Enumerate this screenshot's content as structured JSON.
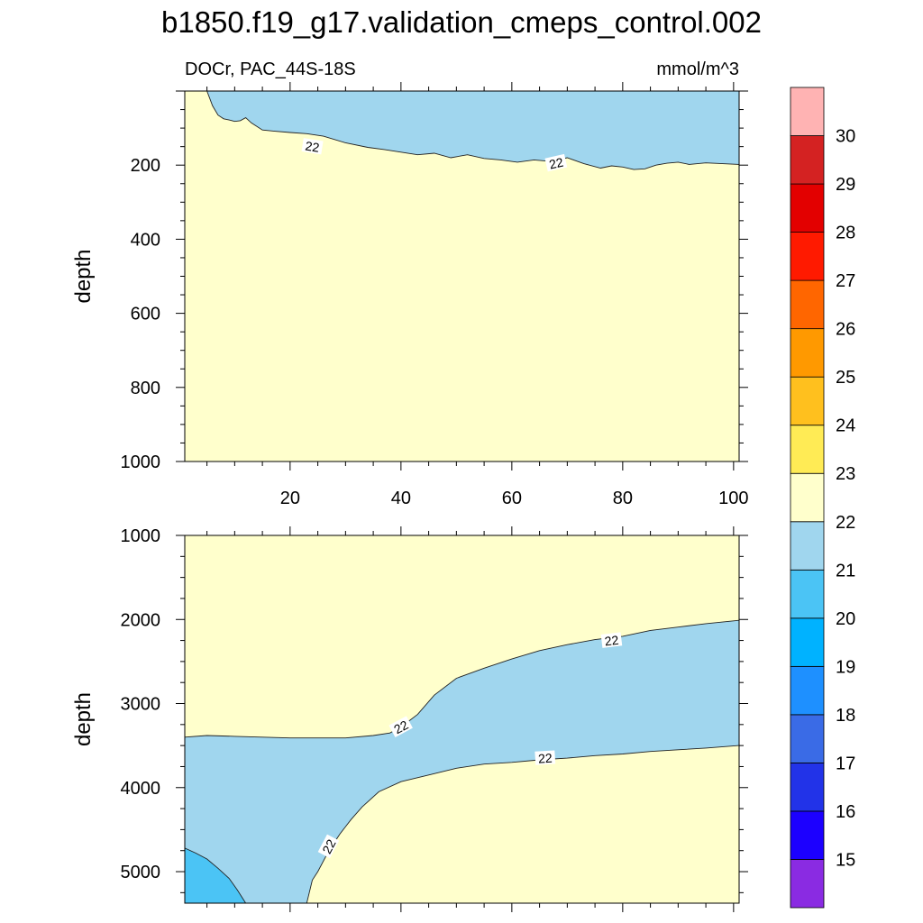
{
  "figure": {
    "title": "b1850.f19_g17.validation_cmeps_control.002",
    "left_subtitle": "DOCr, PAC_44S-18S",
    "right_subtitle": "mmol/m^3"
  },
  "colorbar": {
    "levels": [
      15,
      16,
      17,
      18,
      19,
      20,
      21,
      22,
      23,
      24,
      25,
      26,
      27,
      28,
      29,
      30
    ],
    "colors": [
      "#8a2be2",
      "#1c00ff",
      "#2233e8",
      "#3a6be6",
      "#1e90ff",
      "#00b2ff",
      "#4bc4f5",
      "#a0d6ee",
      "#ffffcc",
      "#ffeb55",
      "#ffc01e",
      "#ff9900",
      "#ff6600",
      "#ff1a00",
      "#e30000",
      "#d42222",
      "#ffb3b3"
    ]
  },
  "chart_data": [
    {
      "type": "contour",
      "panel": "upper",
      "xlabel": "",
      "ylabel": "depth",
      "xlim": [
        1,
        101
      ],
      "ylim": [
        1000,
        0
      ],
      "xticks": [
        20,
        40,
        60,
        80,
        100
      ],
      "yticks": [
        200,
        400,
        600,
        800,
        1000
      ],
      "background_band": "22-23",
      "contour_22": {
        "label": "22",
        "label_positions": [
          [
            24,
            150
          ],
          [
            68,
            195
          ]
        ],
        "x": [
          5,
          6,
          7,
          8,
          9,
          10,
          11,
          12,
          13,
          15,
          17,
          20,
          23,
          26,
          30,
          34,
          37,
          40,
          43,
          46,
          49,
          52,
          55,
          58,
          61,
          64,
          67,
          70,
          73,
          76,
          78,
          80,
          82,
          84,
          86,
          88,
          90,
          92,
          95,
          98,
          101
        ],
        "depth": [
          0,
          40,
          65,
          75,
          78,
          82,
          80,
          72,
          86,
          105,
          108,
          112,
          115,
          122,
          140,
          152,
          158,
          165,
          172,
          168,
          180,
          172,
          182,
          186,
          192,
          186,
          190,
          180,
          196,
          208,
          202,
          205,
          212,
          210,
          200,
          195,
          192,
          198,
          194,
          196,
          198
        ],
        "above": "21-22",
        "below": "22-23"
      }
    },
    {
      "type": "contour",
      "panel": "lower",
      "xlabel": "",
      "ylabel": "depth",
      "xlim": [
        1,
        101
      ],
      "ylim": [
        5375,
        1000
      ],
      "xticks": [
        20,
        40,
        60,
        80,
        100
      ],
      "yticks": [
        1000,
        2000,
        3000,
        4000,
        5000
      ],
      "background_band": "22-23",
      "contour_22_upper": {
        "label": "22",
        "label_positions": [
          [
            40,
            3280
          ],
          [
            78,
            2250
          ]
        ],
        "x": [
          1,
          5,
          10,
          15,
          20,
          25,
          30,
          35,
          38,
          40,
          43,
          46,
          50,
          55,
          60,
          65,
          70,
          75,
          80,
          85,
          90,
          95,
          101
        ],
        "depth": [
          3400,
          3380,
          3390,
          3400,
          3410,
          3410,
          3410,
          3380,
          3350,
          3280,
          3130,
          2900,
          2700,
          2580,
          2470,
          2370,
          2300,
          2240,
          2200,
          2130,
          2090,
          2050,
          2010
        ]
      },
      "contour_22_lower": {
        "label": "22",
        "label_positions": [
          [
            27,
            4700
          ],
          [
            66,
            3650
          ]
        ],
        "x": [
          23,
          24,
          25,
          27,
          29,
          31,
          33,
          36,
          40,
          45,
          50,
          55,
          60,
          65,
          70,
          75,
          80,
          85,
          90,
          95,
          101
        ],
        "depth": [
          5375,
          5100,
          5000,
          4750,
          4550,
          4380,
          4230,
          4050,
          3930,
          3850,
          3770,
          3720,
          3700,
          3670,
          3650,
          3620,
          3600,
          3570,
          3550,
          3530,
          3500
        ]
      },
      "contour_21_corner": {
        "x": [
          1,
          3,
          5,
          7,
          9,
          10.5,
          12
        ],
        "depth": [
          4720,
          4780,
          4850,
          4960,
          5080,
          5220,
          5375
        ]
      },
      "band_between_22_contours": "21-22",
      "corner_band": "20-21"
    }
  ]
}
